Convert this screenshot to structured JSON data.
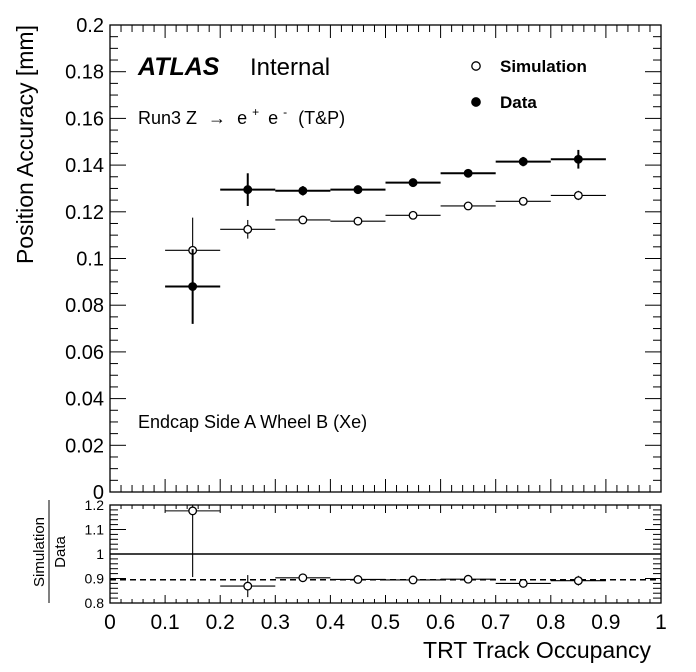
{
  "chart_data": [
    {
      "type": "scatter",
      "panel": "main",
      "title": "",
      "xlabel": "TRT Track Occupancy",
      "ylabel": "Position Accuracy [mm]",
      "xlim": [
        0,
        1
      ],
      "ylim": [
        0,
        0.2
      ],
      "x_ticks": [
        "0",
        "0.1",
        "0.2",
        "0.3",
        "0.4",
        "0.5",
        "0.6",
        "0.7",
        "0.8",
        "0.9",
        "1"
      ],
      "y_ticks": [
        "0",
        "0.02",
        "0.04",
        "0.06",
        "0.08",
        "0.1",
        "0.12",
        "0.14",
        "0.16",
        "0.18",
        "0.2"
      ],
      "legend_position": "top-right",
      "annotations": {
        "experiment": "ATLAS",
        "status": "Internal",
        "process_prefix": "Run3 Z",
        "arrow": "→",
        "e_plus": "e",
        "sup_plus": "+",
        "e_minus": "e",
        "sup_minus": "-",
        "process_suffix": "(T&P)",
        "region": "Endcap Side A Wheel B (Xe)"
      },
      "series": [
        {
          "name": "Simulation",
          "marker": "open-circle",
          "x": [
            0.15,
            0.25,
            0.35,
            0.45,
            0.55,
            0.65,
            0.75,
            0.85
          ],
          "xerr": [
            0.05,
            0.05,
            0.05,
            0.05,
            0.05,
            0.05,
            0.05,
            0.05
          ],
          "y": [
            0.1035,
            0.1125,
            0.1165,
            0.116,
            0.1185,
            0.1225,
            0.1245,
            0.127
          ],
          "yerr": [
            0.014,
            0.004,
            0.0015,
            0.0015,
            0.0015,
            0.0015,
            0.0015,
            0.002
          ]
        },
        {
          "name": "Data",
          "marker": "filled-circle",
          "x": [
            0.15,
            0.25,
            0.35,
            0.45,
            0.55,
            0.65,
            0.75,
            0.85
          ],
          "xerr": [
            0.05,
            0.05,
            0.05,
            0.05,
            0.05,
            0.05,
            0.05,
            0.05
          ],
          "y": [
            0.088,
            0.1295,
            0.129,
            0.1295,
            0.1325,
            0.1365,
            0.1415,
            0.1425
          ],
          "yerr": [
            0.016,
            0.007,
            0.002,
            0.0015,
            0.0015,
            0.0015,
            0.002,
            0.004
          ]
        }
      ]
    },
    {
      "type": "scatter",
      "panel": "ratio",
      "xlabel": "TRT Track Occupancy",
      "ylabel_num": "Simulation",
      "ylabel_den": "Data",
      "xlim": [
        0,
        1
      ],
      "ylim": [
        0.8,
        1.2
      ],
      "y_ticks": [
        "0.8",
        "0.9",
        "1",
        "1.1",
        "1.2"
      ],
      "reference_lines": [
        1.0,
        0.895
      ],
      "series": [
        {
          "name": "Simulation/Data",
          "marker": "open-circle",
          "x": [
            0.15,
            0.25,
            0.35,
            0.45,
            0.55,
            0.65,
            0.75,
            0.85
          ],
          "xerr": [
            0.05,
            0.05,
            0.05,
            0.05,
            0.05,
            0.05,
            0.05,
            0.05
          ],
          "y": [
            1.176,
            0.869,
            0.903,
            0.896,
            0.894,
            0.897,
            0.88,
            0.891
          ],
          "yerr": [
            0.27,
            0.045,
            0.01,
            0.008,
            0.008,
            0.008,
            0.01,
            0.02
          ]
        }
      ]
    }
  ]
}
